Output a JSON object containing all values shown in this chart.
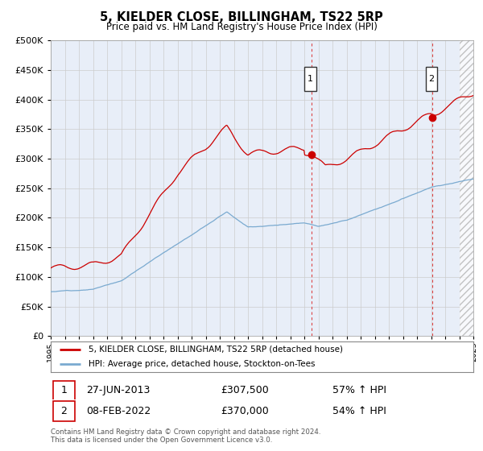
{
  "title": "5, KIELDER CLOSE, BILLINGHAM, TS22 5RP",
  "subtitle": "Price paid vs. HM Land Registry's House Price Index (HPI)",
  "legend_line1": "5, KIELDER CLOSE, BILLINGHAM, TS22 5RP (detached house)",
  "legend_line2": "HPI: Average price, detached house, Stockton-on-Tees",
  "annotation1_date": "27-JUN-2013",
  "annotation1_price": "£307,500",
  "annotation1_hpi": "57% ↑ HPI",
  "annotation1_year": 2013.5,
  "annotation1_value": 307500,
  "annotation2_date": "08-FEB-2022",
  "annotation2_price": "£370,000",
  "annotation2_hpi": "54% ↑ HPI",
  "annotation2_year": 2022.1,
  "annotation2_value": 370000,
  "footer": "Contains HM Land Registry data © Crown copyright and database right 2024.\nThis data is licensed under the Open Government Licence v3.0.",
  "ylim": [
    0,
    500000
  ],
  "xlim_start": 1995,
  "xlim_end": 2025,
  "price_color": "#cc0000",
  "hpi_color": "#7aaad0",
  "background_color": "#e8eef8",
  "grid_color": "#cccccc",
  "dashed_line_color": "#dd4444",
  "hatch_color": "#cccccc"
}
